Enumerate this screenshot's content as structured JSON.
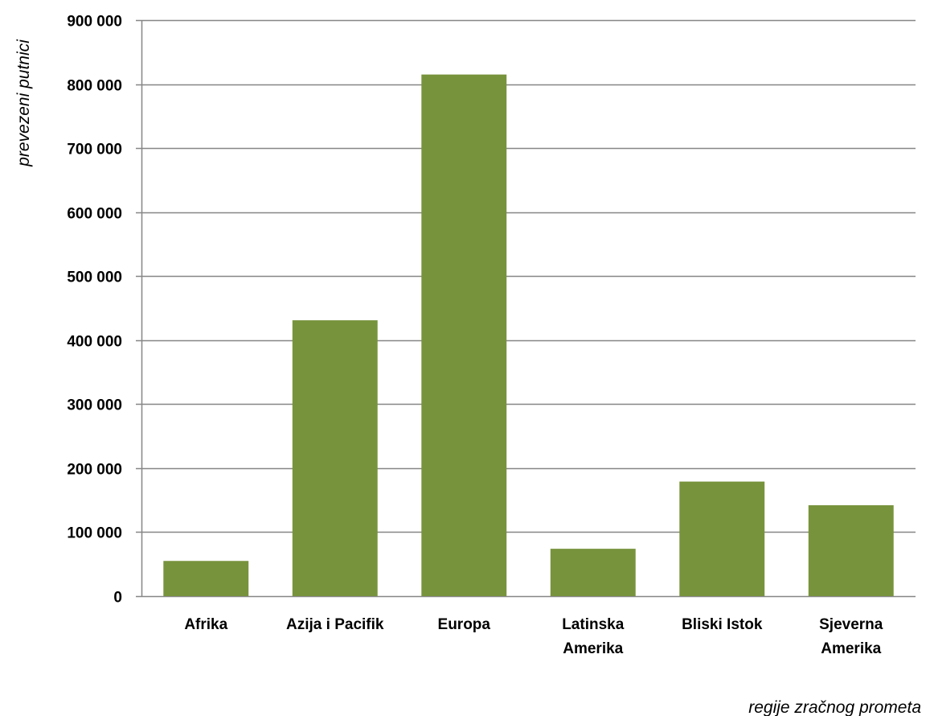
{
  "chart_data": {
    "type": "bar",
    "title": "",
    "ylabel": "prevezeni putnici",
    "xlabel": "regije zračnog prometa",
    "categories": [
      [
        "Afrika"
      ],
      [
        "Azija i Pacifik"
      ],
      [
        "Europa"
      ],
      [
        "Latinska",
        "Amerika"
      ],
      [
        "Bliski Istok"
      ],
      [
        "Sjeverna",
        "Amerika"
      ]
    ],
    "values": [
      55000,
      431000,
      815000,
      74000,
      179000,
      142000
    ],
    "ylim": [
      0,
      900000
    ],
    "yticks": [
      0,
      100000,
      200000,
      300000,
      400000,
      500000,
      600000,
      700000,
      800000,
      900000
    ],
    "ytick_labels": [
      "0",
      "100 000",
      "200 000",
      "300 000",
      "400 000",
      "500 000",
      "600 000",
      "700 000",
      "800 000",
      "900 000"
    ],
    "grid": true,
    "legend": "none",
    "bar_color": "#77933c",
    "grid_color": "#868686"
  }
}
